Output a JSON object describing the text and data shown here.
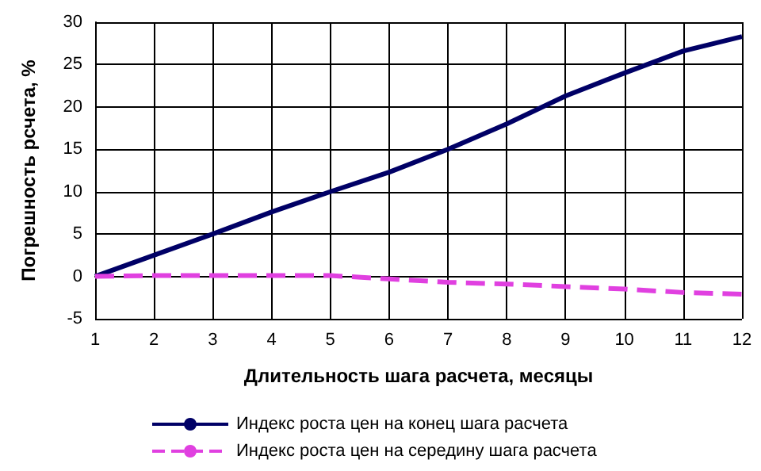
{
  "chart_data": {
    "type": "line",
    "xlabel": "Длительность шага расчета, месяцы",
    "ylabel": "Погрешность рсчета, %",
    "x": [
      1,
      2,
      3,
      4,
      5,
      6,
      7,
      8,
      9,
      10,
      11,
      12
    ],
    "series": [
      {
        "name": "Индекс роста цен на конец шага расчета",
        "color": "#000066",
        "line_style": "solid",
        "values": [
          0,
          2.5,
          5,
          7.6,
          10,
          12.3,
          15,
          18,
          21.3,
          24,
          26.6,
          28.3
        ]
      },
      {
        "name": "Индекс роста цен на середину шага расчета",
        "color": "#e040e0",
        "line_style": "dashed",
        "values": [
          0,
          0.1,
          0.1,
          0.1,
          0.1,
          -0.3,
          -0.7,
          -0.9,
          -1.2,
          -1.5,
          -1.9,
          -2.1
        ]
      }
    ],
    "xlim": [
      1,
      12
    ],
    "xticks": [
      1,
      2,
      3,
      4,
      5,
      6,
      7,
      8,
      9,
      10,
      11,
      12
    ],
    "ylim": [
      -5,
      30
    ],
    "yticks": [
      -5,
      0,
      5,
      10,
      15,
      20,
      25,
      30
    ],
    "grid": true,
    "legend": "bottom",
    "marker": "none"
  }
}
